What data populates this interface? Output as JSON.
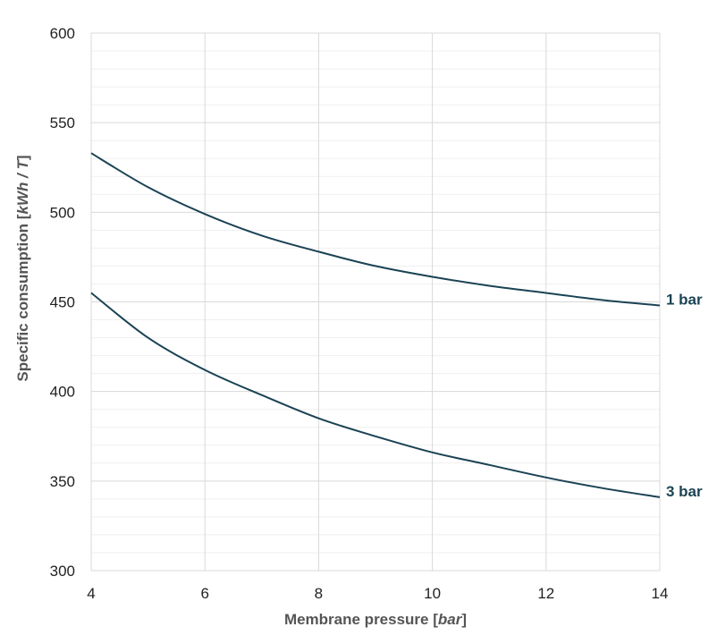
{
  "chart_data": {
    "type": "line",
    "title": "",
    "xlabel": "Membrane pressure [bar]",
    "xlabel_parts": {
      "main": "Membrane pressure ",
      "open": "[",
      "unit": "bar",
      "close": "]"
    },
    "ylabel": "Specific consumption [kWh / T]",
    "ylabel_parts": {
      "main": "Specific consumption ",
      "open": "[",
      "unit": "kWh / T",
      "close": "]"
    },
    "xlim": [
      4,
      14
    ],
    "ylim": [
      300,
      600
    ],
    "xticks": [
      4,
      6,
      8,
      10,
      12,
      14
    ],
    "yticks": [
      300,
      350,
      400,
      450,
      500,
      550,
      600
    ],
    "grid": true,
    "legend": "end-of-line labels",
    "line_color": "#1b4354",
    "series": [
      {
        "name": "1 bar",
        "x": [
          4,
          5,
          6,
          7,
          8,
          9,
          10,
          11,
          12,
          13,
          14
        ],
        "y": [
          533,
          514,
          499,
          487,
          478,
          470,
          464,
          459,
          455,
          451,
          448
        ]
      },
      {
        "name": "3 bar",
        "x": [
          4,
          5,
          6,
          7,
          8,
          9,
          10,
          11,
          12,
          13,
          14
        ],
        "y": [
          455,
          430,
          412,
          398,
          385,
          375,
          366,
          359,
          352,
          346,
          341
        ]
      }
    ]
  }
}
